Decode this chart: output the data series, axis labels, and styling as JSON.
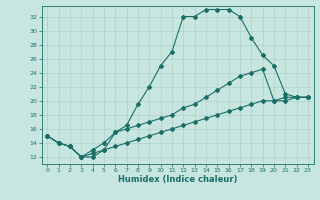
{
  "xlabel": "Humidex (Indice chaleur)",
  "background_color": "#c8e6e0",
  "grid_color": "#aaccc6",
  "line_color": "#1a6e68",
  "xlim": [
    -0.5,
    23.5
  ],
  "ylim": [
    11.0,
    33.5
  ],
  "yticks": [
    12,
    14,
    16,
    18,
    20,
    22,
    24,
    26,
    28,
    30,
    32
  ],
  "xticks": [
    0,
    1,
    2,
    3,
    4,
    5,
    6,
    7,
    8,
    9,
    10,
    11,
    12,
    13,
    14,
    15,
    16,
    17,
    18,
    19,
    20,
    21,
    22,
    23
  ],
  "line1_x": [
    0,
    1,
    2,
    3,
    4,
    5,
    6,
    7,
    8,
    9,
    10,
    11,
    12,
    13,
    14,
    15,
    16,
    17,
    18,
    19,
    20,
    21,
    22,
    23
  ],
  "line1_y": [
    15.0,
    14.0,
    13.5,
    12.0,
    12.0,
    13.0,
    15.5,
    16.5,
    19.5,
    22.0,
    25.0,
    27.0,
    32.0,
    32.0,
    33.0,
    33.0,
    33.0,
    32.0,
    29.0,
    26.5,
    25.0,
    21.0,
    20.5,
    20.5
  ],
  "line2_x": [
    0,
    1,
    2,
    3,
    4,
    5,
    6,
    7,
    8,
    9,
    10,
    11,
    12,
    13,
    14,
    15,
    16,
    17,
    18,
    19,
    20,
    21,
    22,
    23
  ],
  "line2_y": [
    15.0,
    14.0,
    13.5,
    12.0,
    13.0,
    14.0,
    15.5,
    16.0,
    16.5,
    17.0,
    17.5,
    18.0,
    19.0,
    19.5,
    20.5,
    21.5,
    22.5,
    23.5,
    24.0,
    24.5,
    20.0,
    20.5,
    20.5,
    20.5
  ],
  "line3_x": [
    0,
    1,
    2,
    3,
    4,
    5,
    6,
    7,
    8,
    9,
    10,
    11,
    12,
    13,
    14,
    15,
    16,
    17,
    18,
    19,
    20,
    21,
    22,
    23
  ],
  "line3_y": [
    15.0,
    14.0,
    13.5,
    12.0,
    12.5,
    13.0,
    13.5,
    14.0,
    14.5,
    15.0,
    15.5,
    16.0,
    16.5,
    17.0,
    17.5,
    18.0,
    18.5,
    19.0,
    19.5,
    20.0,
    20.0,
    20.0,
    20.5,
    20.5
  ],
  "tick_fontsize": 4.5,
  "xlabel_fontsize": 6.0,
  "marker_size": 2.0,
  "line_width": 0.8
}
